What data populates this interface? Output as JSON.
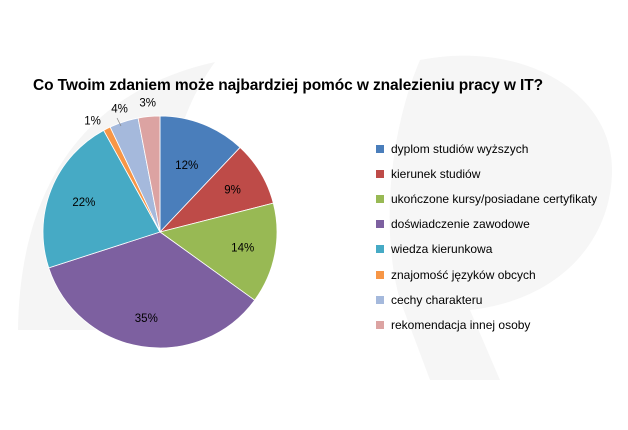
{
  "chart_data": {
    "type": "pie",
    "title": "Co Twoim zdaniem może najbardziej pomóc w znalezieniu pracy w IT?",
    "legend_position": "right",
    "start_angle": "12 o'clock",
    "direction": "clockwise",
    "slices": [
      {
        "label": "dyplom studiów wyższych",
        "value": 12,
        "display": "12%",
        "color": "#4a7ebb"
      },
      {
        "label": "kierunek studiów",
        "value": 9,
        "display": "9%",
        "color": "#be4b48"
      },
      {
        "label": "ukończone kursy/posiadane certyfikaty",
        "value": 14,
        "display": "14%",
        "color": "#98b954"
      },
      {
        "label": "doświadczenie zawodowe",
        "value": 35,
        "display": "35%",
        "color": "#7d60a0"
      },
      {
        "label": "wiedza kierunkowa",
        "value": 22,
        "display": "22%",
        "color": "#46aac5"
      },
      {
        "label": "znajomość języków obcych",
        "value": 1,
        "display": "1%",
        "color": "#f79646"
      },
      {
        "label": "cechy charakteru",
        "value": 4,
        "display": "4%",
        "color": "#a5b9dc"
      },
      {
        "label": "rekomendacja innej osoby",
        "value": 3,
        "display": "3%",
        "color": "#dca3a2"
      }
    ]
  }
}
